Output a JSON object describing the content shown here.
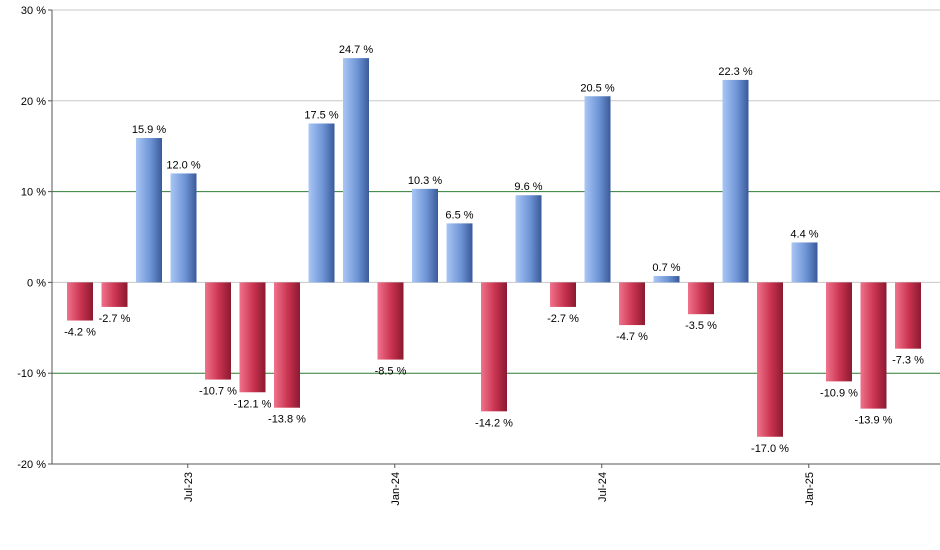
{
  "chart_data": {
    "type": "bar",
    "title": "",
    "xlabel": "",
    "ylabel": "",
    "ylim": [
      -20,
      30
    ],
    "y_ticks": [
      30,
      20,
      10,
      0,
      -10,
      -20
    ],
    "y_tick_labels": [
      "30 %",
      "20 %",
      "10 %",
      "0 %",
      "-10 %",
      "-20 %"
    ],
    "x_tick_labels": [
      {
        "label": "Jul-23",
        "position": 3.5
      },
      {
        "label": "Jan-24",
        "position": 9.5
      },
      {
        "label": "Jul-24",
        "position": 15.5
      },
      {
        "label": "Jan-25",
        "position": 21.5
      }
    ],
    "values": [
      -4.2,
      -2.7,
      15.9,
      12.0,
      -10.7,
      -12.1,
      -13.8,
      17.5,
      24.7,
      -8.5,
      10.3,
      6.5,
      -14.2,
      9.6,
      -2.7,
      20.5,
      -4.7,
      0.7,
      -3.5,
      22.3,
      -17.0,
      4.4,
      -10.9,
      -13.9,
      -7.3
    ],
    "data_labels": [
      "-4.2 %",
      "-2.7 %",
      "15.9 %",
      "12.0 %",
      "-10.7 %",
      "-12.1 %",
      "-13.8 %",
      "17.5 %",
      "24.7 %",
      "-8.5 %",
      "10.3 %",
      "6.5 %",
      "-14.2 %",
      "9.6 %",
      "-2.7 %",
      "20.5 %",
      "-4.7 %",
      "0.7 %",
      "-3.5 %",
      "22.3 %",
      "-17.0 %",
      "4.4 %",
      "-10.9 %",
      "-13.9 %",
      "-7.3 %"
    ],
    "grid": true,
    "highlighted_gridlines": [
      10,
      -10
    ],
    "legend": "none"
  },
  "colors": {
    "positive_light": "#a9c6f5",
    "positive_mid": "#6f95d6",
    "positive_dark": "#3a5a9a",
    "negative_light": "#f0738c",
    "negative_mid": "#c8324f",
    "negative_dark": "#8a1a30",
    "grid": "#c8c8c8",
    "highlight_grid": "#2e7d32",
    "axis": "#555555"
  }
}
